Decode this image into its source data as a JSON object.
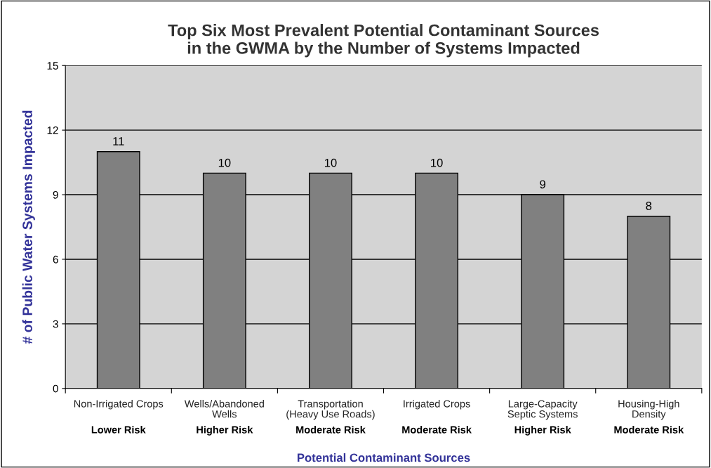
{
  "chart_data": {
    "type": "bar",
    "title": "Top Six Most Prevalent Potential Contaminant Sources\nin the GWMA by the Number of Systems Impacted",
    "xlabel": "Potential Contaminant Sources",
    "ylabel": "# of Public Water Systems Impacted",
    "categories": [
      "Non-Irrigated Crops\n\nLower Risk",
      "Wells/Abandoned\nWells\nHigher Risk",
      "Transportation\n(Heavy Use Roads)\nModerate Risk",
      "Irrigated Crops\n\nModerate Risk",
      "Large-Capacity\nSeptic Systems\nHigher Risk",
      "Housing-High\nDensity\nModerate Risk"
    ],
    "values": [
      11,
      10,
      10,
      10,
      9,
      8
    ],
    "color": "#808080",
    "ylim": [
      0,
      15
    ],
    "yticks": [
      0,
      3,
      6,
      9,
      12,
      15
    ],
    "grid": "y",
    "data_labels": true
  }
}
